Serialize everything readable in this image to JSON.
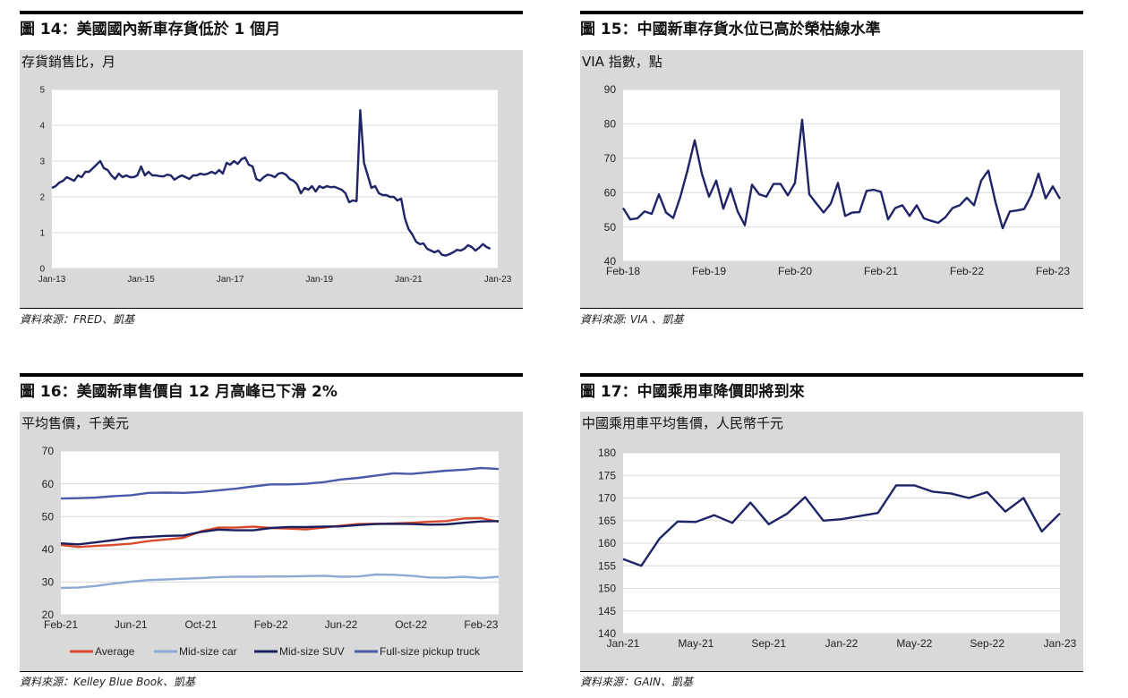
{
  "panels": [
    {
      "title": "圖 14：美國國內新車存貨低於 1 個月",
      "subtitle": "存貨銷售比，月",
      "source": "資料來源：FRED、凱基"
    },
    {
      "title": "圖 15：中國新車存貨水位已高於榮枯線水準",
      "subtitle": "VIA 指數，點",
      "source": "資料來源: VIA 、凱基"
    },
    {
      "title": "圖 16：美國新車售價自 12 月高峰已下滑 2%",
      "subtitle": "平均售價，千美元",
      "source": "資料來源：Kelley Blue Book、凱基"
    },
    {
      "title": "圖 17：中國乘用車降價即將到來",
      "subtitle": "中國乘用車平均售價，人民幣千元",
      "source": "資料來源：GAIN、凱基"
    }
  ],
  "chart_data": [
    {
      "type": "line",
      "xlabel": "",
      "ylabel": "",
      "x_ticks": [
        "Jan-13",
        "Jan-15",
        "Jan-17",
        "Jan-19",
        "Jan-21",
        "Jan-23"
      ],
      "x_tick_positions": [
        0,
        24,
        48,
        72,
        96,
        120
      ],
      "ylim": [
        0,
        5
      ],
      "y_ticks": [
        0,
        1,
        2,
        3,
        4,
        5
      ],
      "grid": true,
      "series": [
        {
          "color": "#1f2466",
          "values": [
            2.25,
            2.3,
            2.4,
            2.45,
            2.55,
            2.5,
            2.45,
            2.6,
            2.55,
            2.7,
            2.7,
            2.8,
            2.9,
            3.0,
            2.8,
            2.75,
            2.6,
            2.5,
            2.65,
            2.55,
            2.6,
            2.55,
            2.55,
            2.6,
            2.85,
            2.6,
            2.7,
            2.6,
            2.6,
            2.58,
            2.57,
            2.62,
            2.6,
            2.48,
            2.55,
            2.6,
            2.55,
            2.5,
            2.6,
            2.6,
            2.65,
            2.62,
            2.65,
            2.7,
            2.65,
            2.75,
            2.65,
            2.95,
            2.9,
            3.0,
            2.92,
            3.05,
            3.1,
            2.9,
            2.85,
            2.5,
            2.45,
            2.55,
            2.62,
            2.6,
            2.55,
            2.65,
            2.67,
            2.62,
            2.5,
            2.45,
            2.35,
            2.1,
            2.25,
            2.2,
            2.3,
            2.15,
            2.3,
            2.25,
            2.3,
            2.27,
            2.28,
            2.24,
            2.2,
            2.1,
            1.85,
            1.9,
            1.88,
            4.42,
            2.95,
            2.6,
            2.25,
            2.3,
            2.1,
            2.05,
            2.05,
            2.0,
            2.0,
            1.9,
            1.95,
            1.4,
            1.1,
            0.95,
            0.75,
            0.68,
            0.7,
            0.55,
            0.5,
            0.45,
            0.5,
            0.38,
            0.36,
            0.4,
            0.45,
            0.52,
            0.5,
            0.55,
            0.65,
            0.6,
            0.5,
            0.58,
            0.68,
            0.6,
            0.55
          ]
        }
      ]
    },
    {
      "type": "line",
      "xlabel": "",
      "ylabel": "",
      "x_ticks": [
        "Feb-18",
        "Feb-19",
        "Feb-20",
        "Feb-21",
        "Feb-22",
        "Feb-23"
      ],
      "x_tick_positions": [
        0,
        12,
        24,
        36,
        48,
        60
      ],
      "ylim": [
        40,
        90
      ],
      "y_ticks": [
        40,
        50,
        60,
        70,
        80,
        90
      ],
      "grid": true,
      "series": [
        {
          "color": "#1f2466",
          "values": [
            55.5,
            52.2,
            52.5,
            54.5,
            53.8,
            59.5,
            54.2,
            52.6,
            58.8,
            66.5,
            75.2,
            65.5,
            58.8,
            63.5,
            55.3,
            61.2,
            54.5,
            50.5,
            62.3,
            59.5,
            58.8,
            62.5,
            62.5,
            59.2,
            62.8,
            81.2,
            59.5,
            56.8,
            54.2,
            56.8,
            62.8,
            53.2,
            54.2,
            54.3,
            60.5,
            60.8,
            60.2,
            52.2,
            55.5,
            56.3,
            53.2,
            56.3,
            52.5,
            51.8,
            51.2,
            52.8,
            55.5,
            56.3,
            58.5,
            56.3,
            63.5,
            66.4,
            57.2,
            49.6,
            54.5,
            54.8,
            55.2,
            59.2,
            65.5,
            58.3,
            61.8,
            58.2
          ]
        }
      ]
    },
    {
      "type": "line",
      "xlabel": "",
      "ylabel": "",
      "x_ticks": [
        "Feb-21",
        "Jun-21",
        "Oct-21",
        "Feb-22",
        "Jun-22",
        "Oct-22",
        "Feb-23"
      ],
      "x_tick_positions": [
        0,
        4,
        8,
        12,
        16,
        20,
        24
      ],
      "ylim": [
        20,
        70
      ],
      "y_ticks": [
        20,
        30,
        40,
        50,
        60,
        70
      ],
      "grid": true,
      "legend": "bottom",
      "series": [
        {
          "name": "Average",
          "color": "#d94a2c",
          "values": [
            41.3,
            40.7,
            41.0,
            41.3,
            41.7,
            42.5,
            43.0,
            43.5,
            45.5,
            46.6,
            46.6,
            46.9,
            46.5,
            46.3,
            46.1,
            46.6,
            47.2,
            47.7,
            47.8,
            47.9,
            48.1,
            48.4,
            48.6,
            49.4,
            49.5,
            48.4
          ]
        },
        {
          "name": "Mid-size car",
          "color": "#8eabd4",
          "values": [
            28.2,
            28.3,
            28.8,
            29.5,
            30.1,
            30.6,
            30.8,
            31.0,
            31.2,
            31.5,
            31.6,
            31.6,
            31.7,
            31.7,
            31.8,
            31.9,
            31.6,
            31.7,
            32.3,
            32.2,
            31.9,
            31.4,
            31.3,
            31.6,
            31.2,
            31.6
          ]
        },
        {
          "name": "Mid-size SUV",
          "color": "#1c1f5e",
          "values": [
            41.8,
            41.5,
            42.1,
            42.8,
            43.5,
            43.8,
            44.1,
            44.2,
            45.3,
            46.0,
            45.8,
            45.8,
            46.5,
            46.8,
            46.8,
            46.9,
            47.0,
            47.4,
            47.7,
            47.8,
            47.7,
            47.5,
            47.6,
            48.1,
            48.5,
            48.6
          ]
        },
        {
          "name": "Full-size pickup truck",
          "color": "#4a5aa8",
          "values": [
            55.5,
            55.6,
            55.8,
            56.2,
            56.5,
            57.2,
            57.3,
            57.2,
            57.5,
            58.0,
            58.5,
            59.2,
            59.8,
            59.8,
            60.0,
            60.5,
            61.3,
            61.8,
            62.5,
            63.2,
            63.0,
            63.5,
            64.0,
            64.3,
            64.8,
            64.5
          ]
        }
      ]
    },
    {
      "type": "line",
      "xlabel": "",
      "ylabel": "",
      "x_ticks": [
        "Jan-21",
        "May-21",
        "Sep-21",
        "Jan-22",
        "May-22",
        "Sep-22",
        "Jan-23"
      ],
      "x_tick_positions": [
        0,
        4,
        8,
        12,
        16,
        20,
        24
      ],
      "ylim": [
        140,
        180
      ],
      "y_ticks": [
        140,
        145,
        150,
        155,
        160,
        165,
        170,
        175,
        180
      ],
      "grid": true,
      "series": [
        {
          "color": "#1f2466",
          "values": [
            156.5,
            155.0,
            161.0,
            164.8,
            164.7,
            166.2,
            164.5,
            169.0,
            164.2,
            166.5,
            170.2,
            165.0,
            165.3,
            166.0,
            166.7,
            172.8,
            172.8,
            171.4,
            171.0,
            170.0,
            171.3,
            167.0,
            170.0,
            162.6,
            166.6
          ]
        }
      ]
    }
  ]
}
